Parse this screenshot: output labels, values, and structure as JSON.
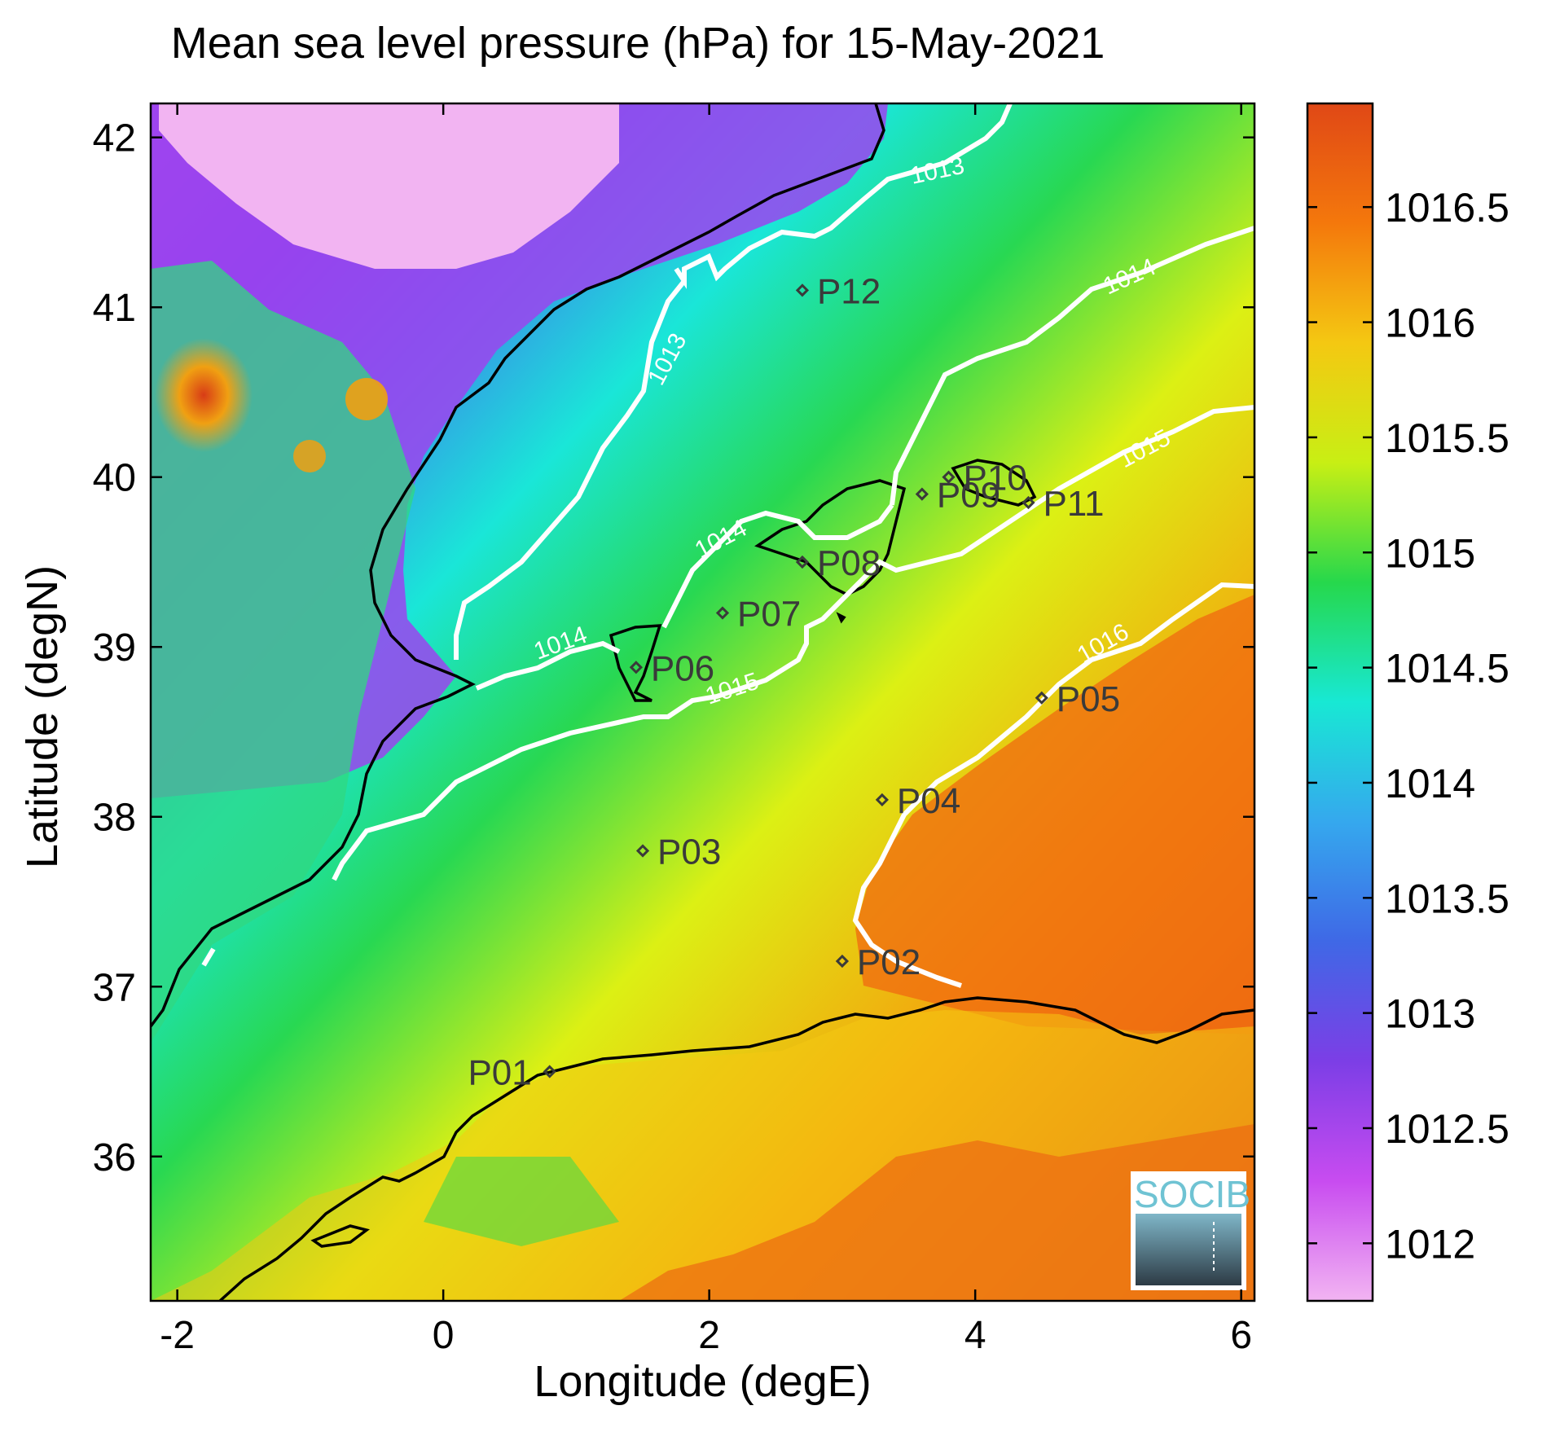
{
  "title": "Mean sea level pressure (hPa) for 15-May-2021",
  "xlabel": "Longitude (degE)",
  "ylabel": "Latitude (degN)",
  "x_ticks": [
    "-2",
    "0",
    "2",
    "4",
    "6"
  ],
  "y_ticks": [
    "36",
    "37",
    "38",
    "39",
    "40",
    "41",
    "42"
  ],
  "colorbar": {
    "ticks": [
      "1012",
      "1012.5",
      "1013",
      "1013.5",
      "1014",
      "1014.5",
      "1015",
      "1015.5",
      "1016",
      "1016.5"
    ],
    "range": [
      1011.75,
      1016.95
    ],
    "colors": [
      "#f2b4f2",
      "#c84cf0",
      "#7c3ee6",
      "#3f68e6",
      "#35a8ee",
      "#18e8d4",
      "#26d84c",
      "#c8ef14",
      "#f4c812",
      "#f4780c",
      "#e04816"
    ]
  },
  "chart_data": {
    "type": "heatmap",
    "title": "Mean sea level pressure (hPa) for 15-May-2021",
    "xlabel": "Longitude (degE)",
    "ylabel": "Latitude (degN)",
    "xlim": [
      -2.2,
      6.1
    ],
    "ylim": [
      35.15,
      42.2
    ],
    "units": "hPa",
    "contour_levels": [
      {
        "value": 1013,
        "label": "1013"
      },
      {
        "value": 1014,
        "label": "1014"
      },
      {
        "value": 1015,
        "label": "1015"
      },
      {
        "value": 1016,
        "label": "1016"
      }
    ],
    "stations": [
      {
        "name": "P01",
        "lon": 0.8,
        "lat": 36.5
      },
      {
        "name": "P02",
        "lon": 3.0,
        "lat": 37.15
      },
      {
        "name": "P03",
        "lon": 1.5,
        "lat": 37.8
      },
      {
        "name": "P04",
        "lon": 3.3,
        "lat": 38.1
      },
      {
        "name": "P05",
        "lon": 4.5,
        "lat": 38.7
      },
      {
        "name": "P06",
        "lon": 1.45,
        "lat": 38.88
      },
      {
        "name": "P07",
        "lon": 2.1,
        "lat": 39.2
      },
      {
        "name": "P08",
        "lon": 2.7,
        "lat": 39.5
      },
      {
        "name": "P09",
        "lon": 3.6,
        "lat": 39.9
      },
      {
        "name": "P10",
        "lon": 3.8,
        "lat": 40.0
      },
      {
        "name": "P11",
        "lon": 4.4,
        "lat": 39.85
      },
      {
        "name": "P12",
        "lon": 2.7,
        "lat": 41.1
      }
    ]
  },
  "logo": {
    "text": "SOCIB"
  }
}
